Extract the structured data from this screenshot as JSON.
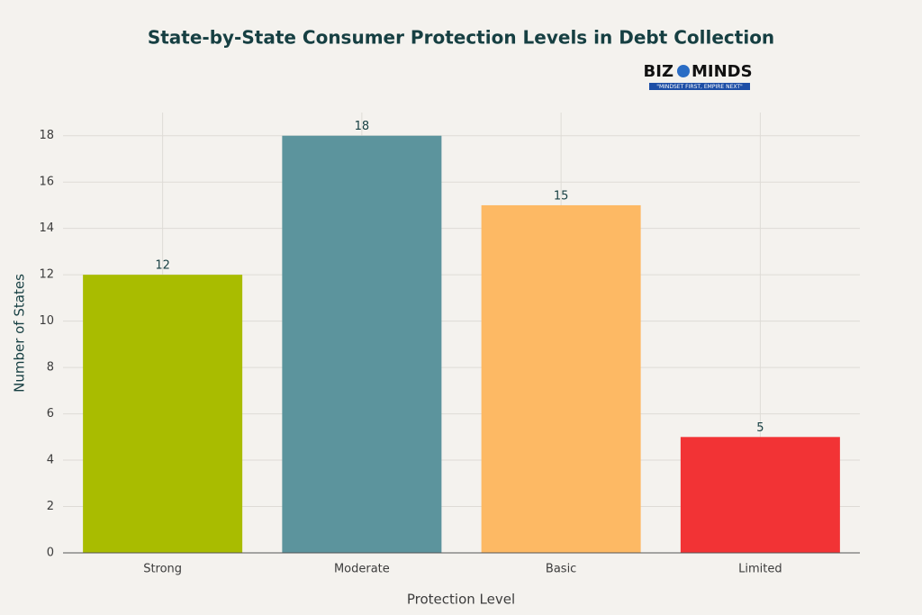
{
  "chart_data": {
    "type": "bar",
    "title": "State-by-State Consumer Protection Levels in Debt Collection",
    "logo": {
      "left": "BIZ",
      "right": "MINDS",
      "tagline": "\"MINDSET FIRST, EMPIRE NEXT\""
    },
    "x_label": "Protection Level",
    "y_label": "Number of States",
    "categories": [
      "Strong",
      "Moderate",
      "Basic",
      "Limited"
    ],
    "values": [
      12,
      18,
      15,
      5
    ],
    "colors": [
      "#a9bc00",
      "#5c949d",
      "#fdb964",
      "#f23335"
    ],
    "ylim": [
      0,
      19
    ],
    "yticks": [
      0,
      2,
      4,
      6,
      8,
      10,
      12,
      14,
      16,
      18
    ],
    "grid": true
  }
}
